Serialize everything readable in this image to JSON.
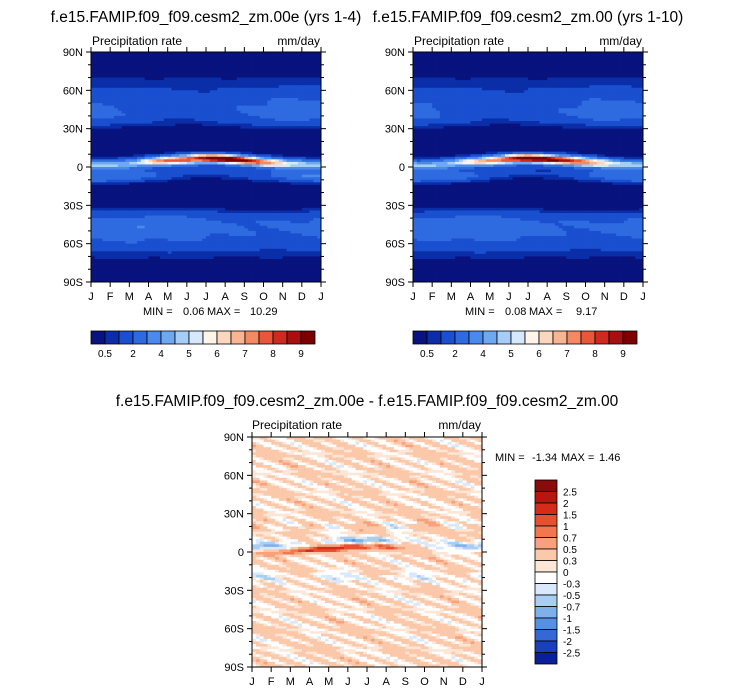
{
  "panels": [
    {
      "title": "f.e15.FAMIP.f09_f09.cesm2_zm.00e (yrs 1-4)",
      "field_label": "Precipitation rate",
      "units": "mm/day",
      "min_label": "MIN =",
      "min_value": "0.06",
      "max_label": "MAX =",
      "max_value": "10.29"
    },
    {
      "title": "f.e15.FAMIP.f09_f09.cesm2_zm.00 (yrs 1-10)",
      "field_label": "Precipitation rate",
      "units": "mm/day",
      "min_label": "MIN =",
      "min_value": "0.08",
      "max_label": "MAX =",
      "max_value": "9.17"
    },
    {
      "title": "f.e15.FAMIP.f09_f09.cesm2_zm.00e - f.e15.FAMIP.f09_f09.cesm2_zm.00",
      "field_label": "Precipitation rate",
      "units": "mm/day",
      "min_label": "MIN =",
      "min_value": "-1.34",
      "max_label": "MAX =",
      "max_value": "1.46"
    }
  ],
  "axes": {
    "month_ticks": [
      "J",
      "F",
      "M",
      "A",
      "M",
      "J",
      "J",
      "A",
      "S",
      "O",
      "N",
      "D",
      "J"
    ],
    "lat_ticks": [
      "90N",
      "60N",
      "30N",
      "0",
      "30S",
      "60S",
      "90S"
    ]
  },
  "colorbars": {
    "precip": {
      "labels": [
        "0.5",
        "2",
        "4",
        "5",
        "6",
        "7",
        "8",
        "9"
      ],
      "colors": [
        "#08137e",
        "#0a2ea8",
        "#1a4fd0",
        "#2f6be0",
        "#4a8aed",
        "#6fa8f2",
        "#a6cdf7",
        "#d6e8fb",
        "#fff4e8",
        "#fdd7bd",
        "#fbb491",
        "#f58a62",
        "#e8573a",
        "#cf2a1f",
        "#a80f10",
        "#7d0000"
      ]
    },
    "diff": {
      "labels": [
        "2.5",
        "2",
        "1.5",
        "1",
        "0.7",
        "0.5",
        "0.3",
        "0",
        "-0.3",
        "-0.5",
        "-0.7",
        "-1",
        "-1.5",
        "-2",
        "-2.5"
      ],
      "colors": [
        "#8a0b0b",
        "#b7170f",
        "#d42c18",
        "#e9502f",
        "#f2774f",
        "#f7a27c",
        "#fbc8aa",
        "#fde6d6",
        "#ffffff",
        "#d9e9fb",
        "#aacdf4",
        "#7eb0ec",
        "#5690e3",
        "#3468d6",
        "#1840bc",
        "#09209a"
      ]
    }
  },
  "chart_data": [
    {
      "type": "heatmap",
      "title": "f.e15.FAMIP.f09_f09.cesm2_zm.00e (yrs 1-4)",
      "subtitle_left": "Precipitation rate",
      "subtitle_right": "mm/day",
      "x": [
        "J",
        "F",
        "M",
        "A",
        "M",
        "J",
        "J",
        "A",
        "S",
        "O",
        "N",
        "D",
        "J"
      ],
      "y": [
        "90N",
        "60N",
        "30N",
        "0",
        "30S",
        "60S",
        "90S"
      ],
      "colorbar_levels": [
        "0.5",
        "2",
        "4",
        "5",
        "6",
        "7",
        "8",
        "9"
      ],
      "min": 0.06,
      "max": 10.29
    },
    {
      "type": "heatmap",
      "title": "f.e15.FAMIP.f09_f09.cesm2_zm.00 (yrs 1-10)",
      "subtitle_left": "Precipitation rate",
      "subtitle_right": "mm/day",
      "x": [
        "J",
        "F",
        "M",
        "A",
        "M",
        "J",
        "J",
        "A",
        "S",
        "O",
        "N",
        "D",
        "J"
      ],
      "y": [
        "90N",
        "60N",
        "30N",
        "0",
        "30S",
        "60S",
        "90S"
      ],
      "colorbar_levels": [
        "0.5",
        "2",
        "4",
        "5",
        "6",
        "7",
        "8",
        "9"
      ],
      "min": 0.08,
      "max": 9.17
    },
    {
      "type": "heatmap",
      "title": "f.e15.FAMIP.f09_f09.cesm2_zm.00e - f.e15.FAMIP.f09_f09.cesm2_zm.00",
      "subtitle_left": "Precipitation rate",
      "subtitle_right": "mm/day",
      "x": [
        "J",
        "F",
        "M",
        "A",
        "M",
        "J",
        "J",
        "A",
        "S",
        "O",
        "N",
        "D",
        "J"
      ],
      "y": [
        "90N",
        "60N",
        "30N",
        "0",
        "30S",
        "60S",
        "90S"
      ],
      "colorbar_levels": [
        "2.5",
        "2",
        "1.5",
        "1",
        "0.7",
        "0.5",
        "0.3",
        "0",
        "-0.3",
        "-0.5",
        "-0.7",
        "-1",
        "-1.5",
        "-2",
        "-2.5"
      ],
      "min": -1.34,
      "max": 1.46
    }
  ]
}
